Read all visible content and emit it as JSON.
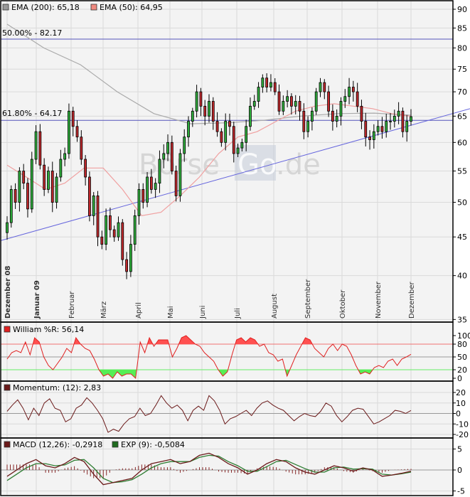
{
  "chart_data": [
    {
      "type": "candlestick",
      "scale": "log",
      "ylim": [
        35,
        90
      ],
      "y_ticks": [
        "90",
        "85",
        "80",
        "75",
        "70",
        "65",
        "60",
        "55",
        "50",
        "45",
        "40",
        "35"
      ],
      "x_tick_labels": [
        "Dezember 08",
        "Januar 09",
        "Februar",
        "März",
        "April",
        "Mai",
        "Juni",
        "Juli",
        "August",
        "September",
        "Oktober",
        "November",
        "Dezember"
      ],
      "grid": true,
      "legend": {
        "ema200_label": "EMA (200): 65,18",
        "ema50_label": "EMA (50): 64,95",
        "placement": "top-left"
      },
      "annotations": {
        "fib_50": "50.00% - 82.17",
        "fib_618": "61.80% - 64.17"
      },
      "fib_levels": [
        82.17,
        64.17
      ],
      "trendline": {
        "start": 44.5,
        "end": 66.5
      },
      "watermark": "BörseGo.de",
      "close": [
        47,
        52,
        50,
        55,
        53,
        49,
        57,
        62,
        56,
        52,
        55,
        50,
        54,
        57,
        58,
        66,
        63,
        61,
        57,
        54,
        48,
        51,
        45,
        44,
        48,
        46,
        45,
        47,
        42,
        40.5,
        44,
        48,
        52,
        50,
        54,
        52,
        53,
        57,
        58,
        60,
        55,
        51,
        58,
        61,
        64,
        66,
        70,
        67,
        65,
        68,
        64,
        62,
        60,
        64,
        63,
        58,
        59,
        60,
        63,
        67,
        68,
        71,
        73,
        71,
        72,
        70,
        66,
        68,
        69,
        67,
        68,
        66,
        62,
        64,
        66,
        70,
        72,
        70,
        66,
        64,
        65,
        68,
        69,
        71,
        70,
        67,
        64,
        61,
        60.5,
        62,
        63,
        62,
        64,
        64,
        65,
        66,
        62,
        64,
        64.9
      ],
      "ema200": [
        86,
        80,
        76,
        70,
        65.5,
        63.5,
        63.7,
        64.2,
        65,
        65.5,
        65.6,
        65.18
      ],
      "ema50": [
        56,
        54,
        52,
        53,
        55.5,
        55.5,
        52,
        48,
        48.5,
        51,
        54,
        58,
        61,
        62,
        64,
        66,
        67,
        67.5,
        67,
        66.5,
        65.5,
        64.95
      ],
      "colors": {
        "up": "#2fae3c",
        "down": "#c0282c",
        "ema200": "#aaaaaa",
        "ema50": "#f0a0a0",
        "fib": "#5555bb",
        "trend": "#6666dd"
      }
    },
    {
      "type": "line",
      "legend_label": "William %R: 56,14",
      "ylim": [
        0,
        100
      ],
      "y_ticks": [
        "100",
        "80",
        "50",
        "20",
        "0"
      ],
      "levels": [
        80,
        50,
        20
      ],
      "values": [
        45,
        60,
        65,
        60,
        85,
        55,
        95,
        85,
        50,
        30,
        20,
        35,
        50,
        70,
        60,
        95,
        80,
        70,
        65,
        45,
        20,
        5,
        10,
        0,
        15,
        5,
        10,
        10,
        0,
        85,
        60,
        95,
        75,
        90,
        90,
        90,
        50,
        70,
        95,
        100,
        90,
        80,
        75,
        60,
        50,
        40,
        20,
        5,
        15,
        55,
        90,
        95,
        85,
        95,
        90,
        75,
        80,
        60,
        55,
        40,
        45,
        5,
        30,
        55,
        75,
        95,
        90,
        70,
        60,
        50,
        70,
        80,
        65,
        80,
        75,
        55,
        30,
        10,
        15,
        10,
        25,
        30,
        25,
        40,
        45,
        30,
        45,
        50,
        56.14
      ],
      "colors": {
        "line": "#e02020",
        "over": "#ff5050",
        "under": "#55ee55"
      }
    },
    {
      "type": "line",
      "legend_label": "Momentum: (12): 2,83",
      "ylim": [
        -20,
        20
      ],
      "y_ticks": [
        "20",
        "10",
        "0",
        "-10",
        "-20"
      ],
      "values": [
        2,
        8,
        13,
        5,
        -6,
        5,
        -2,
        10,
        14,
        5,
        3,
        -8,
        -5,
        5,
        8,
        15,
        10,
        3,
        -5,
        -18,
        -15,
        -17,
        -10,
        -5,
        -3,
        5,
        -2,
        0,
        8,
        17,
        10,
        5,
        8,
        3,
        -7,
        3,
        7,
        3,
        17,
        12,
        3,
        -10,
        -5,
        -3,
        0,
        3,
        -2,
        5,
        10,
        12,
        8,
        5,
        3,
        -2,
        -7,
        -3,
        0,
        -2,
        -3,
        2,
        10,
        7,
        -2,
        -8,
        -3,
        3,
        5,
        4,
        -3,
        -10,
        -8,
        -5,
        -2,
        3,
        2,
        0,
        2.83
      ],
      "colors": {
        "line": "#6b1a1a"
      }
    },
    {
      "type": "line",
      "ylim": [
        -5,
        5
      ],
      "y_ticks": [
        "5",
        "0",
        "-5"
      ],
      "series": [
        {
          "name": "MACD (12,26): -0,2918",
          "values": [
            -1.5,
            0,
            1.5,
            2.5,
            1,
            0.5,
            1.5,
            3,
            2,
            -1,
            -3.5,
            -3,
            -2.5,
            -2,
            0,
            1.5,
            2,
            2.5,
            1.5,
            2,
            3.5,
            4,
            3,
            1.5,
            0.5,
            -1,
            0,
            1.5,
            2.5,
            2,
            0.5,
            -0.5,
            -1,
            0,
            1,
            0.5,
            -0.3,
            0.5,
            0,
            -1.5,
            -1.2,
            -0.8,
            -0.29
          ]
        },
        {
          "name": "EXP (9): -0,5084",
          "values": [
            -2.5,
            -1,
            0.5,
            1.5,
            1.5,
            1,
            1.2,
            2.3,
            2.5,
            0.5,
            -2,
            -3,
            -2.8,
            -2.3,
            -1,
            0.5,
            1.5,
            2,
            2,
            2,
            3,
            3.5,
            3.3,
            2,
            1,
            -0.3,
            -0.3,
            0.8,
            2,
            2.3,
            1.3,
            0.3,
            -0.5,
            -0.5,
            0.5,
            0.7,
            0.2,
            0.3,
            0.2,
            -1,
            -1.2,
            -0.9,
            -0.51
          ]
        }
      ],
      "colors": {
        "macd": "#6b1a1a",
        "signal": "#2e7d32",
        "hist": "#7a1010"
      }
    }
  ]
}
